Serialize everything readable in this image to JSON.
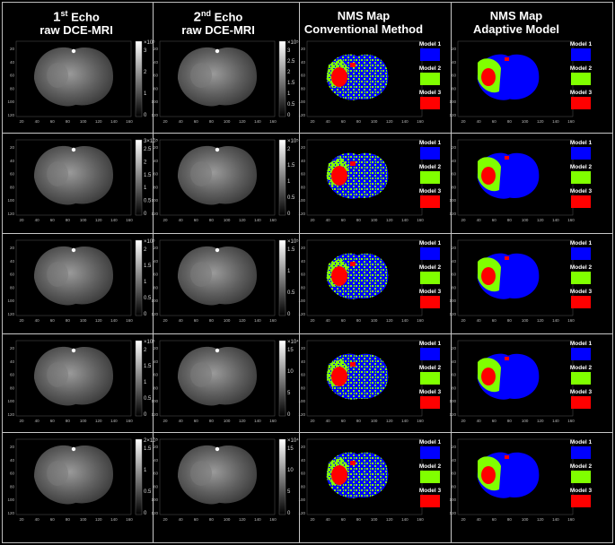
{
  "headers": [
    {
      "sup": "st",
      "num": "1",
      "word": "Echo",
      "line2": "raw DCE-MRI"
    },
    {
      "sup": "nd",
      "num": "2",
      "word": "Echo",
      "line2": "raw DCE-MRI"
    },
    {
      "line1": "NMS Map",
      "line2": "Conventional Method"
    },
    {
      "line1": "NMS Map",
      "line2": "Adaptive Model"
    }
  ],
  "legend": [
    {
      "label": "Model 1",
      "color": "#0000ff"
    },
    {
      "label": "Model 2",
      "color": "#80ff00"
    },
    {
      "label": "Model 3",
      "color": "#ff0000"
    }
  ],
  "x_ticks": [
    "20",
    "40",
    "60",
    "80",
    "100",
    "120",
    "140",
    "160"
  ],
  "y_ticks": [
    "20",
    "40",
    "60",
    "80",
    "100",
    "120"
  ],
  "rows": [
    {
      "cb1": {
        "exp": "×10⁵",
        "ticks": [
          "3",
          "2",
          "1",
          "0"
        ]
      },
      "cb2": {
        "exp": "×10⁵",
        "ticks": [
          "3",
          "2.5",
          "2",
          "1.5",
          "1",
          "0.5",
          "0"
        ]
      }
    },
    {
      "cb1": {
        "exp": "3×10⁵",
        "ticks": [
          "2.5",
          "2",
          "1.5",
          "1",
          "0.5",
          "0"
        ]
      },
      "cb2": {
        "exp": "×10⁵",
        "ticks": [
          "2",
          "1.5",
          "1",
          "0.5",
          "0"
        ]
      }
    },
    {
      "cb1": {
        "exp": "×10⁵",
        "ticks": [
          "2",
          "1.5",
          "1",
          "0.5",
          "0"
        ]
      },
      "cb2": {
        "exp": "×10⁵",
        "ticks": [
          "1.5",
          "1",
          "0.5",
          "0"
        ]
      }
    },
    {
      "cb1": {
        "exp": "×10⁵",
        "ticks": [
          "2",
          "1.5",
          "1",
          "0.5",
          "0"
        ]
      },
      "cb2": {
        "exp": "×10⁴",
        "ticks": [
          "15",
          "10",
          "5",
          "0"
        ]
      }
    },
    {
      "cb1": {
        "exp": "2×10⁵",
        "ticks": [
          "1.5",
          "1",
          "0.5",
          "0"
        ]
      },
      "cb2": {
        "exp": "×10⁴",
        "ticks": [
          "15",
          "10",
          "5",
          "0"
        ]
      }
    }
  ]
}
